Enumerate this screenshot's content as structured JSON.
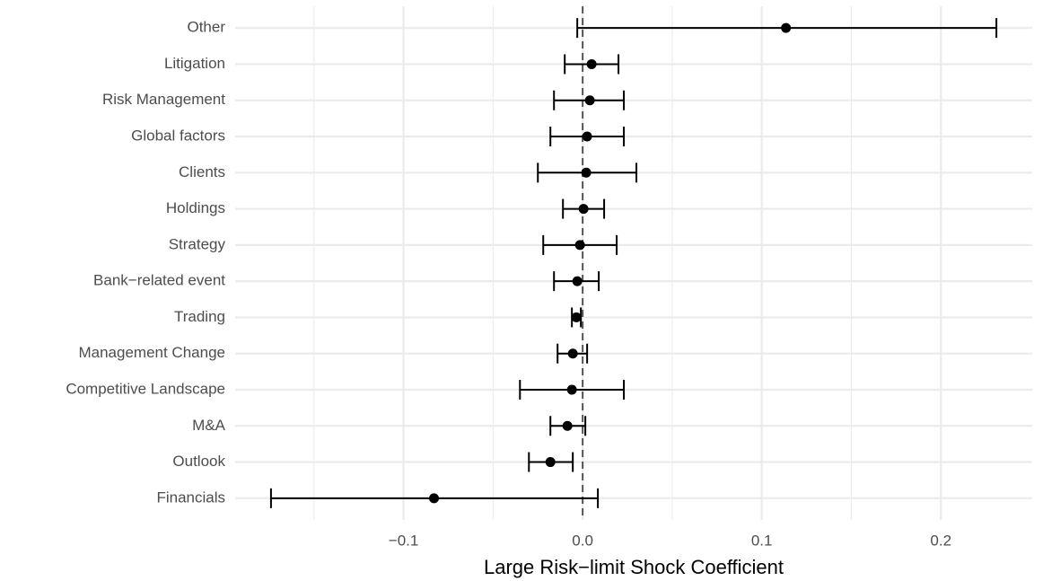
{
  "chart_data": {
    "type": "coefficient",
    "x_label": "Large Risk−limit Shock Coefficient",
    "categories": [
      "Other",
      "Litigation",
      "Risk Management",
      "Global factors",
      "Clients",
      "Holdings",
      "Strategy",
      "Bank−related event",
      "Trading",
      "Management Change",
      "Competitive Landscape",
      "M&A",
      "Outlook",
      "Financials"
    ],
    "estimate": [
      0.1135,
      0.005,
      0.004,
      0.0025,
      0.002,
      0.0005,
      -0.0015,
      -0.003,
      -0.0035,
      -0.0055,
      -0.006,
      -0.0085,
      -0.018,
      -0.083
    ],
    "lower": [
      -0.003,
      -0.01,
      -0.016,
      -0.018,
      -0.025,
      -0.011,
      -0.022,
      -0.016,
      -0.006,
      -0.014,
      -0.035,
      -0.018,
      -0.03,
      -0.174
    ],
    "upper": [
      0.231,
      0.02,
      0.023,
      0.023,
      0.03,
      0.012,
      0.019,
      0.009,
      -0.001,
      0.0025,
      0.023,
      0.0015,
      -0.0055,
      0.0085
    ],
    "color": "#000000",
    "xlim": [
      -0.194,
      0.251
    ],
    "xticks": [
      {
        "value": -0.1,
        "label": "−0.1"
      },
      {
        "value": 0,
        "label": "0.0"
      },
      0.1,
      0.2
    ],
    "minor_xticks": [
      -0.15,
      -0.05,
      0.05,
      0.15
    ],
    "reference_line": 0,
    "grid": true
  }
}
